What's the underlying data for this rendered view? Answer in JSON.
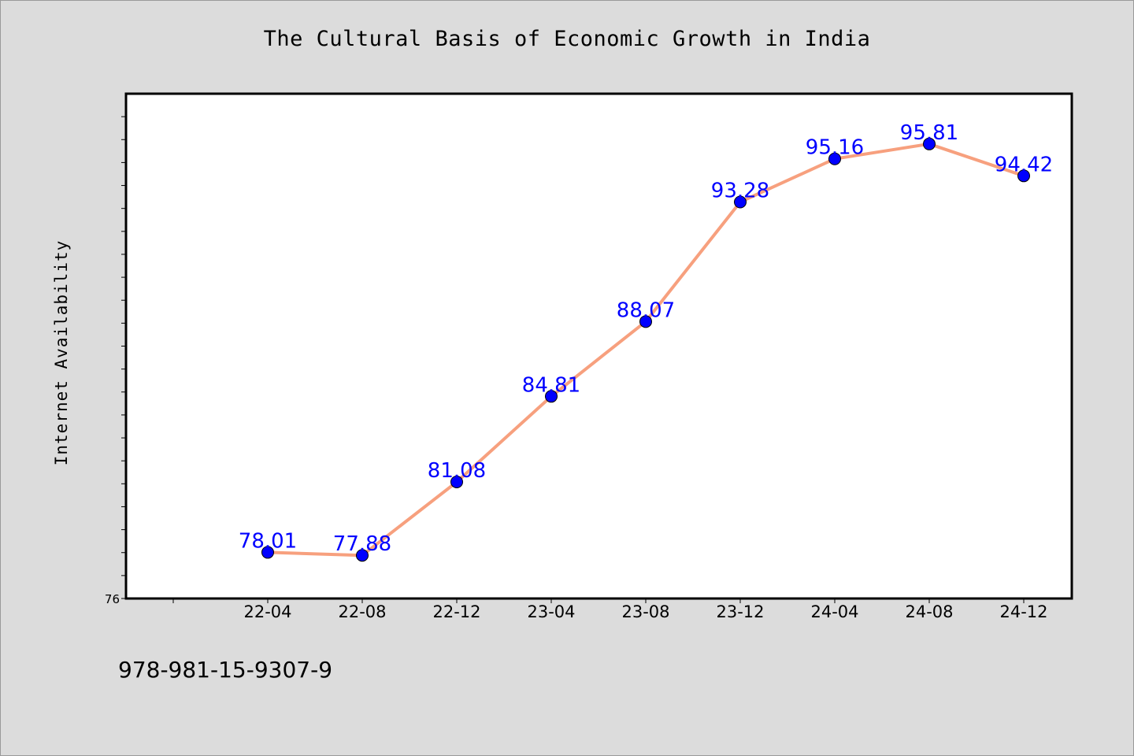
{
  "chart_data": {
    "type": "line",
    "title": "The Cultural Basis of Economic Growth in India",
    "xlabel": "",
    "ylabel": "Internet Availability",
    "categories": [
      "22-04",
      "22-08",
      "22-12",
      "23-04",
      "23-08",
      "23-12",
      "24-04",
      "24-08",
      "24-12"
    ],
    "values": [
      78.01,
      77.88,
      81.08,
      84.81,
      88.07,
      93.28,
      95.16,
      95.81,
      94.42
    ],
    "data_labels": [
      "78.01",
      "77.88",
      "81.08",
      "84.81",
      "88.07",
      "93.28",
      "95.16",
      "95.81",
      "94.42"
    ],
    "ylim": [
      76,
      98
    ],
    "y_tick_labels": [
      "76"
    ],
    "grid": false,
    "legend": "none",
    "colors": {
      "line": "#f7a07e",
      "marker": "#0000ff",
      "label": "#0000ff",
      "plot_background": "#ffffff",
      "page_background": "#dcdcdc"
    }
  },
  "footer": {
    "text": "978-981-15-9307-9"
  }
}
